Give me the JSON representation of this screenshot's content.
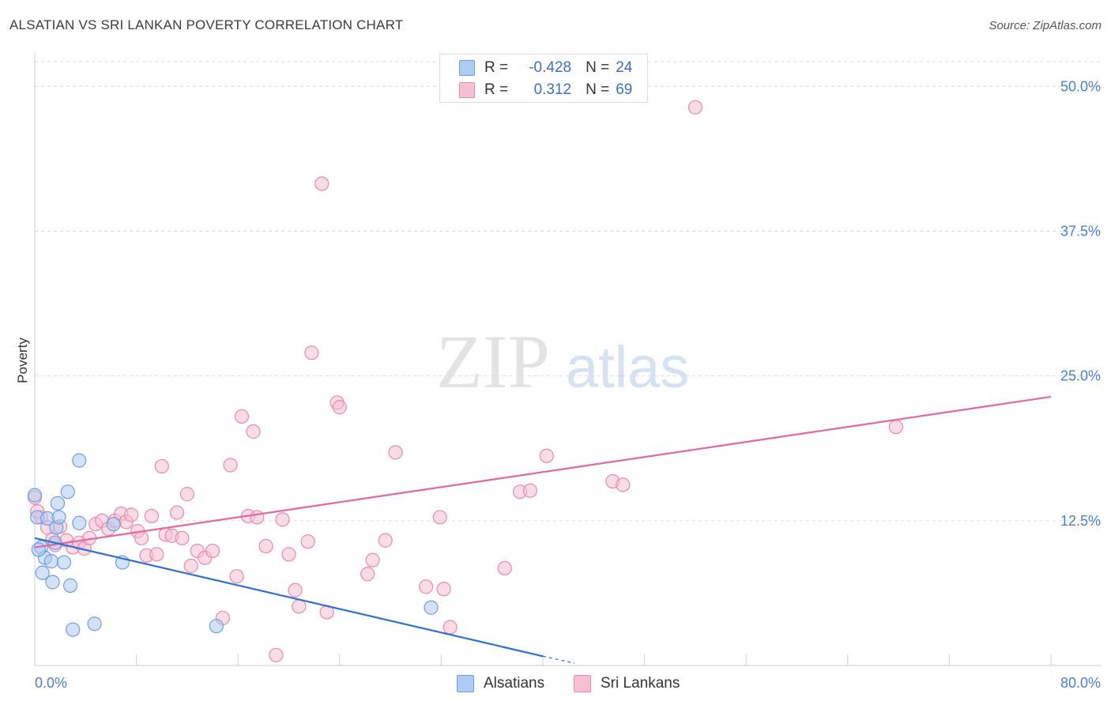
{
  "title": "ALSATIAN VS SRI LANKAN POVERTY CORRELATION CHART",
  "source": "Source: ZipAtlas.com",
  "watermark": {
    "zip": "ZIP",
    "atlas": "atlas"
  },
  "legend": {
    "rows": [
      {
        "r_label": "R =",
        "r_value": "-0.428",
        "n_label": "N =",
        "n_value": "24"
      },
      {
        "r_label": "R =",
        "r_value": "0.312",
        "n_label": "N =",
        "n_value": "69"
      }
    ]
  },
  "bottom_legend": [
    "Alsatians",
    "Sri Lankans"
  ],
  "colors": {
    "alsatian_fill": "#aecbf3",
    "alsatian_stroke": "#6f9ee0",
    "alsatian_line": "#2f6fd3",
    "srilankan_fill": "#f6c0d2",
    "srilankan_stroke": "#e88aaa",
    "srilankan_line": "#e2699a",
    "axis_label": "#4a7fd0",
    "grid": "#dcdcdc"
  },
  "chart_data": {
    "type": "scatter",
    "title": "ALSATIAN VS SRI LANKAN POVERTY CORRELATION CHART",
    "xlabel": "",
    "ylabel": "Poverty",
    "xlim": [
      0,
      80
    ],
    "ylim": [
      0,
      52
    ],
    "x_tick_labels": [
      "0.0%",
      "80.0%"
    ],
    "y_ticks": [
      12.5,
      25.0,
      37.5,
      50.0
    ],
    "y_tick_labels": [
      "12.5%",
      "25.0%",
      "37.5%",
      "50.0%"
    ],
    "grid": true,
    "series": [
      {
        "name": "Alsatians",
        "points": [
          [
            0.0,
            14.7
          ],
          [
            0.2,
            12.8
          ],
          [
            0.5,
            10.2
          ],
          [
            0.6,
            8.0
          ],
          [
            0.8,
            9.3
          ],
          [
            1.0,
            12.7
          ],
          [
            1.3,
            9.0
          ],
          [
            1.4,
            7.2
          ],
          [
            1.6,
            10.6
          ],
          [
            1.7,
            11.9
          ],
          [
            1.8,
            14.0
          ],
          [
            1.9,
            12.8
          ],
          [
            2.3,
            8.9
          ],
          [
            2.6,
            15.0
          ],
          [
            2.8,
            6.9
          ],
          [
            3.0,
            3.1
          ],
          [
            3.5,
            17.7
          ],
          [
            3.5,
            12.3
          ],
          [
            4.7,
            3.6
          ],
          [
            6.2,
            12.2
          ],
          [
            6.9,
            8.9
          ],
          [
            14.3,
            3.4
          ],
          [
            31.2,
            5.0
          ],
          [
            0.3,
            10.0
          ]
        ],
        "trend": {
          "x": [
            0,
            40
          ],
          "y": [
            11.0,
            0.8
          ]
        },
        "trend_dashed": {
          "x": [
            40,
            42.5
          ],
          "y": [
            0.8,
            0.2
          ]
        }
      },
      {
        "name": "Sri Lankans",
        "points": [
          [
            0.0,
            14.5
          ],
          [
            0.5,
            12.8
          ],
          [
            1.0,
            11.9
          ],
          [
            1.6,
            10.4
          ],
          [
            2.0,
            12.0
          ],
          [
            2.5,
            10.8
          ],
          [
            3.0,
            10.2
          ],
          [
            3.5,
            10.6
          ],
          [
            3.9,
            10.1
          ],
          [
            4.3,
            11.0
          ],
          [
            4.8,
            12.2
          ],
          [
            5.3,
            12.5
          ],
          [
            5.8,
            11.8
          ],
          [
            6.3,
            12.5
          ],
          [
            6.8,
            13.1
          ],
          [
            7.2,
            12.4
          ],
          [
            7.6,
            13.0
          ],
          [
            8.1,
            11.6
          ],
          [
            8.4,
            11.0
          ],
          [
            8.8,
            9.5
          ],
          [
            9.2,
            12.9
          ],
          [
            9.6,
            9.6
          ],
          [
            10.0,
            17.2
          ],
          [
            10.3,
            11.3
          ],
          [
            10.8,
            11.2
          ],
          [
            11.2,
            13.2
          ],
          [
            11.6,
            11.0
          ],
          [
            12.0,
            14.8
          ],
          [
            12.3,
            8.6
          ],
          [
            12.8,
            9.9
          ],
          [
            13.4,
            9.3
          ],
          [
            14.0,
            9.9
          ],
          [
            14.8,
            4.1
          ],
          [
            15.4,
            17.3
          ],
          [
            15.9,
            7.7
          ],
          [
            16.3,
            21.5
          ],
          [
            16.8,
            12.9
          ],
          [
            17.2,
            20.2
          ],
          [
            17.5,
            12.8
          ],
          [
            18.2,
            10.3
          ],
          [
            19.0,
            0.9
          ],
          [
            19.5,
            12.6
          ],
          [
            20.0,
            9.6
          ],
          [
            20.5,
            6.5
          ],
          [
            20.8,
            5.1
          ],
          [
            21.5,
            10.7
          ],
          [
            21.8,
            27.0
          ],
          [
            22.6,
            41.6
          ],
          [
            23.0,
            4.6
          ],
          [
            23.8,
            22.7
          ],
          [
            24.0,
            22.3
          ],
          [
            26.2,
            7.9
          ],
          [
            26.6,
            9.1
          ],
          [
            27.6,
            10.8
          ],
          [
            28.4,
            18.4
          ],
          [
            30.8,
            6.8
          ],
          [
            31.9,
            12.8
          ],
          [
            32.2,
            6.6
          ],
          [
            32.7,
            3.3
          ],
          [
            37.0,
            8.4
          ],
          [
            38.2,
            15.0
          ],
          [
            39.0,
            15.1
          ],
          [
            40.3,
            18.1
          ],
          [
            45.5,
            15.9
          ],
          [
            46.3,
            15.6
          ],
          [
            52.0,
            48.2
          ],
          [
            67.8,
            20.6
          ],
          [
            1.4,
            10.9
          ],
          [
            0.2,
            13.3
          ]
        ],
        "trend": {
          "x": [
            0,
            80
          ],
          "y": [
            10.2,
            23.2
          ]
        }
      }
    ]
  }
}
